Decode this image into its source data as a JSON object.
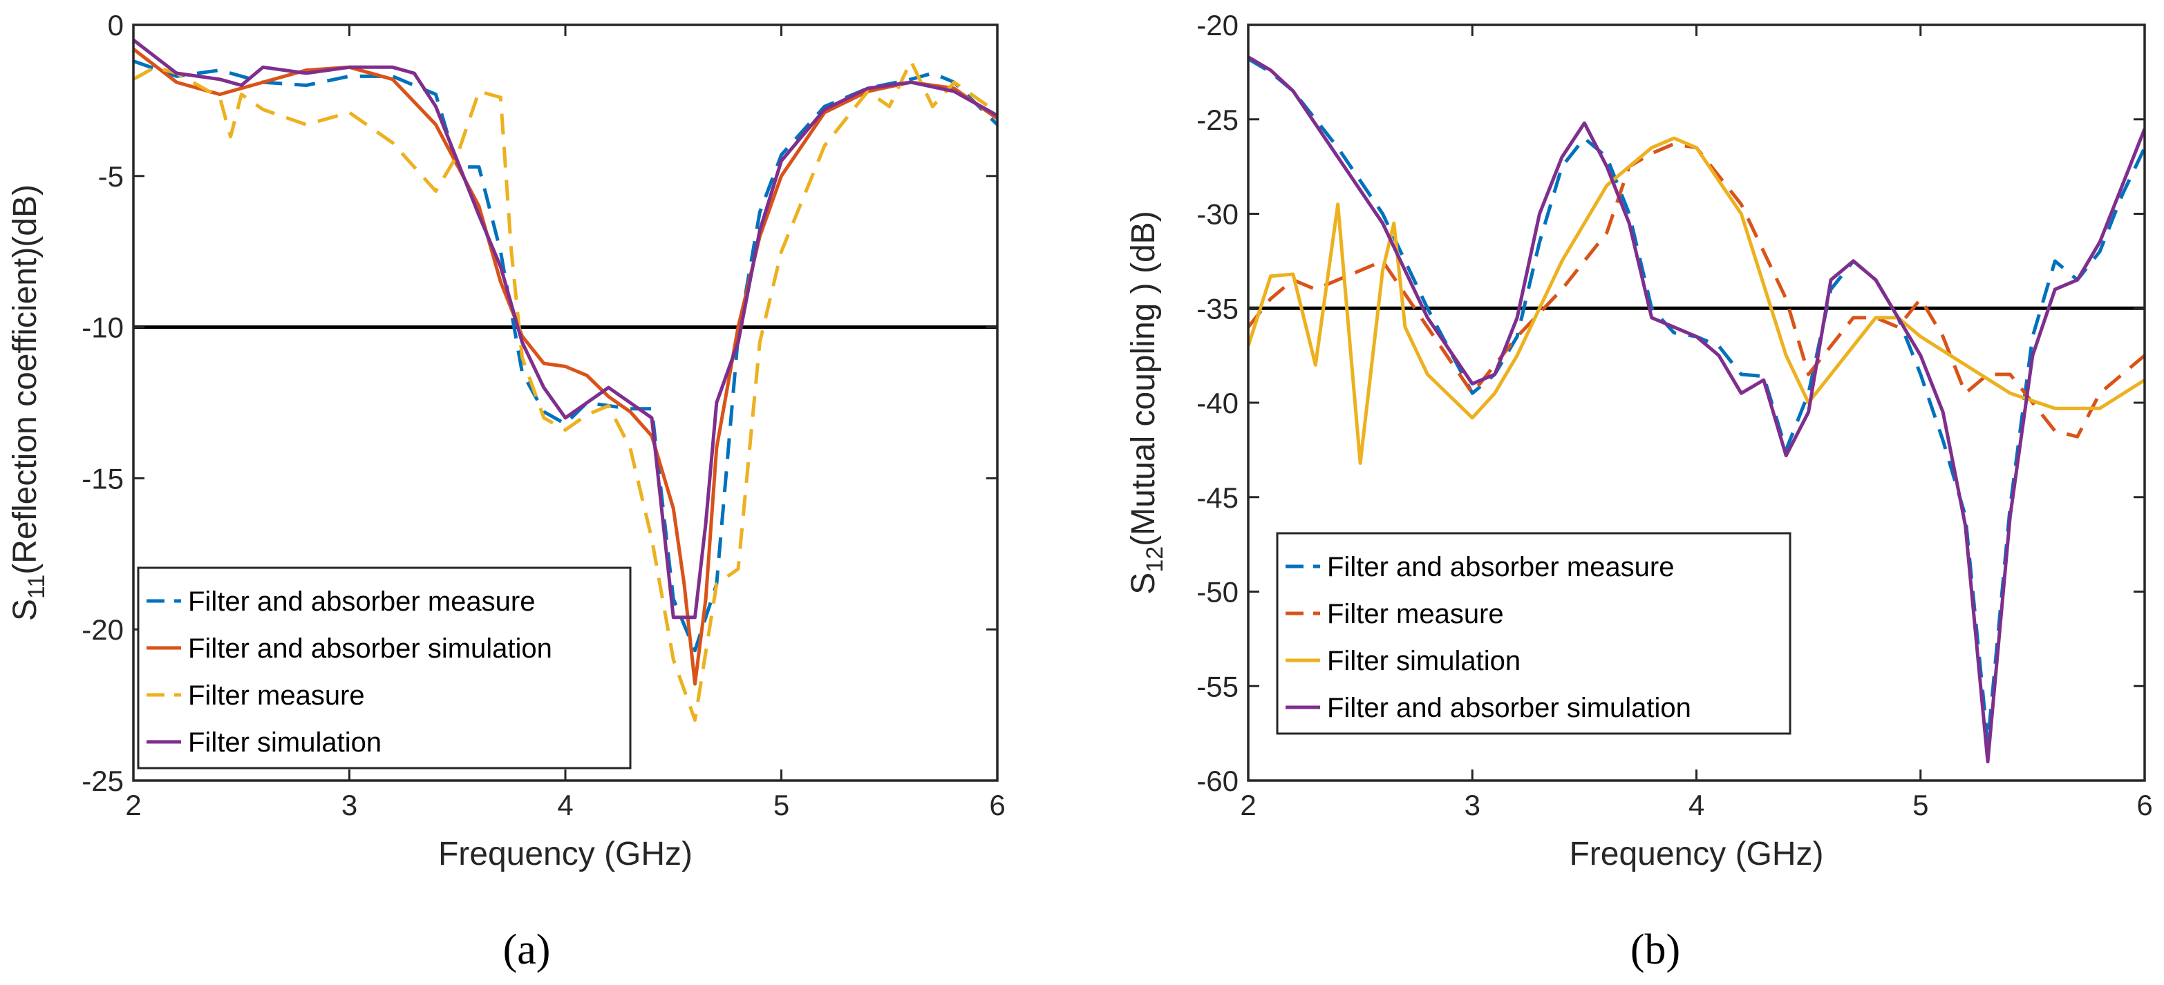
{
  "chart_data": [
    {
      "type": "line",
      "caption": "(a)",
      "xlabel": "Frequency (GHz)",
      "ylabel_main": "S",
      "ylabel_sub": "11",
      "ylabel_rest": "(Reflection coefficient)(dB)",
      "xlim": [
        2,
        6
      ],
      "ylim": [
        -25,
        0
      ],
      "xticks": [
        2,
        3,
        4,
        5,
        6
      ],
      "yticks": [
        0,
        -5,
        -10,
        -15,
        -20,
        -25
      ],
      "xtick_labels": [
        "2",
        "3",
        "4",
        "5",
        "6"
      ],
      "ytick_labels": [
        "0",
        "-5",
        "-10",
        "-15",
        "-20",
        "-25"
      ],
      "reference_line": -10,
      "legend_position": "bottom-left",
      "series": [
        {
          "name": "Filter and absorber measure",
          "color": "#0072BD",
          "dash": "dashed",
          "x": [
            2.0,
            2.2,
            2.4,
            2.6,
            2.8,
            3.0,
            3.2,
            3.4,
            3.5,
            3.6,
            3.7,
            3.8,
            3.9,
            4.0,
            4.1,
            4.2,
            4.3,
            4.4,
            4.5,
            4.6,
            4.7,
            4.8,
            4.9,
            5.0,
            5.2,
            5.4,
            5.6,
            5.7,
            5.8,
            6.0
          ],
          "y": [
            -1.2,
            -1.7,
            -1.5,
            -1.9,
            -2.0,
            -1.7,
            -1.7,
            -2.3,
            -4.7,
            -4.7,
            -7.5,
            -11.5,
            -12.8,
            -13.2,
            -12.5,
            -12.6,
            -12.7,
            -12.7,
            -19.0,
            -20.7,
            -18.5,
            -10.3,
            -6.2,
            -4.3,
            -2.7,
            -2.1,
            -1.8,
            -1.6,
            -1.9,
            -3.3
          ]
        },
        {
          "name": "Filter and absorber simulation",
          "color": "#D95319",
          "dash": "solid",
          "x": [
            2.0,
            2.2,
            2.4,
            2.6,
            2.8,
            3.0,
            3.2,
            3.4,
            3.6,
            3.7,
            3.8,
            3.9,
            4.0,
            4.1,
            4.2,
            4.3,
            4.4,
            4.5,
            4.55,
            4.6,
            4.65,
            4.7,
            4.8,
            4.9,
            5.0,
            5.2,
            5.4,
            5.6,
            5.8,
            6.0
          ],
          "y": [
            -0.8,
            -1.9,
            -2.3,
            -1.9,
            -1.5,
            -1.4,
            -1.8,
            -3.3,
            -6.0,
            -8.5,
            -10.3,
            -11.2,
            -11.3,
            -11.6,
            -12.3,
            -12.8,
            -13.6,
            -16.0,
            -18.5,
            -21.8,
            -19.0,
            -14.0,
            -10.0,
            -7.0,
            -5.0,
            -2.9,
            -2.2,
            -1.9,
            -2.1,
            -3.1
          ]
        },
        {
          "name": "Filter measure",
          "color": "#EDB120",
          "dash": "dashed",
          "x": [
            2.0,
            2.1,
            2.2,
            2.4,
            2.45,
            2.5,
            2.6,
            2.8,
            3.0,
            3.2,
            3.4,
            3.5,
            3.6,
            3.65,
            3.7,
            3.75,
            3.8,
            3.9,
            4.0,
            4.1,
            4.2,
            4.3,
            4.4,
            4.5,
            4.6,
            4.7,
            4.8,
            4.9,
            5.0,
            5.2,
            5.4,
            5.5,
            5.6,
            5.7,
            5.8,
            6.0
          ],
          "y": [
            -1.8,
            -1.4,
            -1.6,
            -2.4,
            -3.7,
            -2.3,
            -2.8,
            -3.3,
            -2.9,
            -3.9,
            -5.5,
            -4.3,
            -2.2,
            -2.3,
            -2.4,
            -7.5,
            -11.0,
            -13.0,
            -13.4,
            -12.9,
            -12.6,
            -14.0,
            -17.0,
            -21.0,
            -23.0,
            -18.5,
            -18.0,
            -10.5,
            -7.5,
            -4.0,
            -2.2,
            -2.7,
            -1.2,
            -2.7,
            -1.9,
            -2.9
          ]
        },
        {
          "name": "Filter simulation",
          "color": "#7E2F8E",
          "dash": "solid",
          "x": [
            2.0,
            2.2,
            2.4,
            2.5,
            2.6,
            2.8,
            3.0,
            3.2,
            3.3,
            3.4,
            3.6,
            3.7,
            3.8,
            3.9,
            4.0,
            4.1,
            4.2,
            4.3,
            4.4,
            4.5,
            4.6,
            4.65,
            4.7,
            4.8,
            4.9,
            5.0,
            5.2,
            5.4,
            5.6,
            5.8,
            6.0
          ],
          "y": [
            -0.5,
            -1.6,
            -1.8,
            -2.0,
            -1.4,
            -1.6,
            -1.4,
            -1.4,
            -1.6,
            -2.7,
            -6.3,
            -8.0,
            -10.5,
            -12.0,
            -13.0,
            -12.5,
            -12.0,
            -12.5,
            -13.0,
            -19.6,
            -19.6,
            -16.5,
            -12.5,
            -10.5,
            -6.8,
            -4.5,
            -2.8,
            -2.1,
            -1.9,
            -2.2,
            -3.0
          ]
        }
      ]
    },
    {
      "type": "line",
      "caption": "(b)",
      "xlabel": "Frequency (GHz)",
      "ylabel_main": "S",
      "ylabel_sub": "12",
      "ylabel_rest": "(Mutual coupling ) (dB)",
      "xlim": [
        2,
        6
      ],
      "ylim": [
        -60,
        -20
      ],
      "xticks": [
        2,
        3,
        4,
        5,
        6
      ],
      "yticks": [
        -20,
        -25,
        -30,
        -35,
        -40,
        -45,
        -50,
        -55,
        -60
      ],
      "xtick_labels": [
        "2",
        "3",
        "4",
        "5",
        "6"
      ],
      "ytick_labels": [
        "-20",
        "-25",
        "-30",
        "-35",
        "-40",
        "-45",
        "-50",
        "-55",
        "-60"
      ],
      "reference_line": -35,
      "legend_position": "bottom-left",
      "series": [
        {
          "name": "Filter and absorber measure",
          "color": "#0072BD",
          "dash": "dashed",
          "x": [
            2.0,
            2.1,
            2.2,
            2.4,
            2.6,
            2.8,
            3.0,
            3.1,
            3.2,
            3.3,
            3.4,
            3.5,
            3.6,
            3.7,
            3.8,
            3.9,
            4.0,
            4.1,
            4.2,
            4.3,
            4.4,
            4.5,
            4.6,
            4.7,
            4.8,
            4.9,
            5.0,
            5.1,
            5.2,
            5.3,
            5.4,
            5.5,
            5.6,
            5.7,
            5.8,
            5.9,
            6.0
          ],
          "y": [
            -21.8,
            -22.5,
            -23.5,
            -26.5,
            -30.0,
            -35.0,
            -39.5,
            -38.5,
            -36.5,
            -31.5,
            -27.5,
            -26.0,
            -27.0,
            -30.0,
            -35.0,
            -36.3,
            -36.5,
            -37.0,
            -38.5,
            -38.6,
            -42.5,
            -39.5,
            -34.0,
            -32.5,
            -33.5,
            -35.5,
            -38.5,
            -42.0,
            -46.0,
            -58.0,
            -45.5,
            -36.5,
            -32.5,
            -33.5,
            -32.0,
            -29.0,
            -26.5
          ]
        },
        {
          "name": "Filter measure",
          "color": "#D95319",
          "dash": "dashed",
          "x": [
            2.0,
            2.1,
            2.2,
            2.3,
            2.4,
            2.6,
            2.8,
            3.0,
            3.2,
            3.4,
            3.6,
            3.7,
            3.8,
            3.9,
            4.0,
            4.2,
            4.4,
            4.5,
            4.6,
            4.7,
            4.8,
            4.9,
            5.0,
            5.1,
            5.2,
            5.3,
            5.4,
            5.5,
            5.6,
            5.7,
            5.8,
            6.0
          ],
          "y": [
            -36.0,
            -34.5,
            -33.5,
            -34.0,
            -33.5,
            -32.5,
            -36.0,
            -39.5,
            -36.5,
            -34.0,
            -31.0,
            -27.5,
            -26.8,
            -26.3,
            -26.5,
            -29.5,
            -34.5,
            -38.5,
            -37.0,
            -35.5,
            -35.5,
            -36.0,
            -34.5,
            -36.5,
            -39.5,
            -38.5,
            -38.5,
            -40.0,
            -41.5,
            -41.8,
            -39.5,
            -37.5
          ]
        },
        {
          "name": "Filter simulation",
          "color": "#EDB120",
          "dash": "solid",
          "x": [
            2.0,
            2.1,
            2.2,
            2.3,
            2.4,
            2.5,
            2.6,
            2.65,
            2.7,
            2.8,
            3.0,
            3.1,
            3.2,
            3.4,
            3.6,
            3.8,
            3.9,
            4.0,
            4.2,
            4.4,
            4.5,
            4.6,
            4.8,
            4.9,
            5.0,
            5.2,
            5.4,
            5.6,
            5.8,
            6.0
          ],
          "y": [
            -37.0,
            -33.3,
            -33.2,
            -38.0,
            -29.5,
            -43.2,
            -33.0,
            -30.5,
            -36.0,
            -38.5,
            -40.8,
            -39.5,
            -37.5,
            -32.5,
            -28.5,
            -26.5,
            -26.0,
            -26.5,
            -30.0,
            -37.5,
            -40.0,
            -38.5,
            -35.5,
            -35.5,
            -36.5,
            -38.0,
            -39.5,
            -40.3,
            -40.3,
            -38.8
          ]
        },
        {
          "name": "Filter and absorber simulation",
          "color": "#7E2F8E",
          "dash": "solid",
          "x": [
            2.0,
            2.1,
            2.2,
            2.4,
            2.6,
            2.8,
            3.0,
            3.1,
            3.2,
            3.3,
            3.4,
            3.5,
            3.6,
            3.7,
            3.8,
            3.9,
            4.0,
            4.1,
            4.2,
            4.3,
            4.4,
            4.5,
            4.6,
            4.7,
            4.8,
            4.9,
            5.0,
            5.1,
            5.2,
            5.3,
            5.4,
            5.5,
            5.6,
            5.7,
            5.8,
            5.9,
            6.0
          ],
          "y": [
            -21.7,
            -22.4,
            -23.5,
            -27.0,
            -30.5,
            -35.5,
            -39.0,
            -38.5,
            -35.5,
            -30.0,
            -27.0,
            -25.2,
            -27.5,
            -30.5,
            -35.5,
            -36.0,
            -36.5,
            -37.5,
            -39.5,
            -38.8,
            -42.8,
            -40.5,
            -33.5,
            -32.5,
            -33.5,
            -35.5,
            -37.5,
            -40.5,
            -46.5,
            -59.0,
            -46.0,
            -37.5,
            -34.0,
            -33.5,
            -31.5,
            -28.5,
            -25.5
          ]
        }
      ]
    }
  ]
}
